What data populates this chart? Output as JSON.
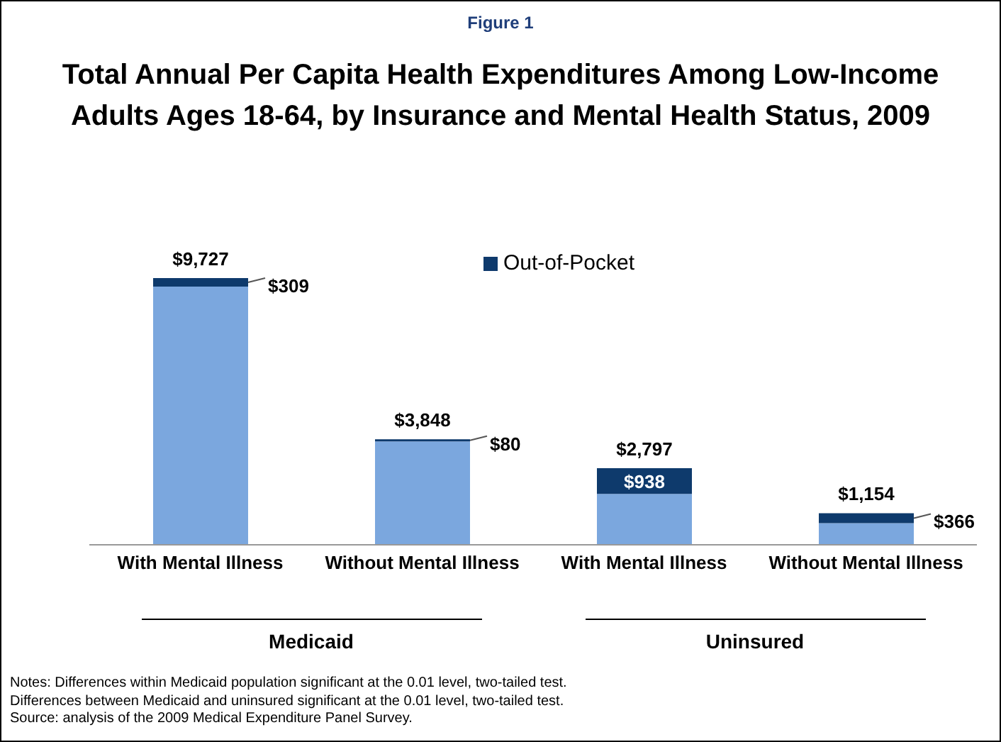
{
  "chart_data": {
    "type": "bar",
    "subtitle": "Figure 1",
    "title": "Total Annual Per Capita Health Expenditures Among Low-Income Adults Ages 18-64, by Insurance and Mental Health Status, 2009",
    "categories": [
      "With Mental Illness",
      "Without Mental Illness",
      "With Mental Illness",
      "Without Mental Illness"
    ],
    "stacked": true,
    "series": [
      {
        "color": "#7ba7de",
        "values": [
          9418,
          3768,
          1859,
          788
        ]
      },
      {
        "name": "Out-of-Pocket",
        "color": "#0e3a6c",
        "values": [
          309,
          80,
          938,
          366
        ],
        "value_labels": [
          "$309",
          "$80",
          "$938",
          "$366"
        ]
      }
    ],
    "totals": [
      "$9,727",
      "$3,848",
      "$2,797",
      "$1,154"
    ],
    "legend": "top",
    "annotations": [
      "Medicaid",
      "Uninsured",
      "Notes: Differences within Medicaid population significant at the 0.01 level, two-tailed test.",
      "Differences between Medicaid and uninsured significant at the 0.01 level, two-tailed test.",
      "Source:  analysis of the 2009 Medical Expenditure Panel Survey."
    ]
  }
}
